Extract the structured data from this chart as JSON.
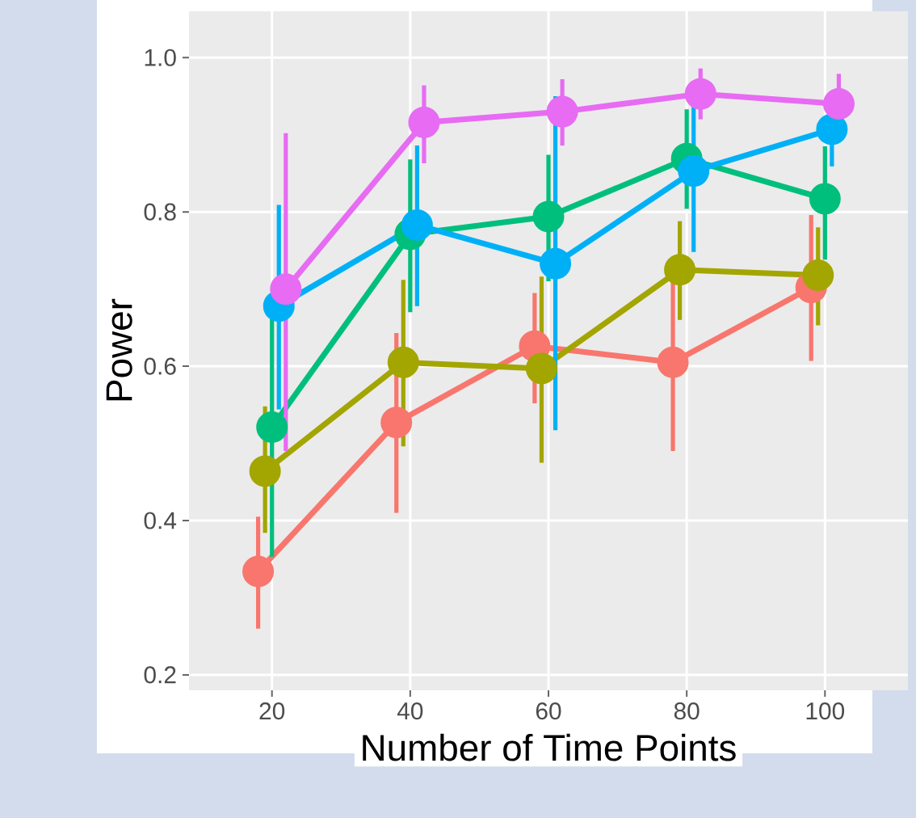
{
  "chart_data": {
    "type": "line",
    "xlabel": "Number of Time Points",
    "ylabel": "Power",
    "xlim": [
      8,
      112
    ],
    "ylim": [
      0.18,
      1.06
    ],
    "xticks": [
      20,
      40,
      60,
      80,
      100
    ],
    "yticks": [
      {
        "value": 0.2,
        "label": "0.2"
      },
      {
        "value": 0.4,
        "label": "0.4"
      },
      {
        "value": 0.6,
        "label": "0.6"
      },
      {
        "value": 0.8,
        "label": "0.8"
      },
      {
        "value": 1.0,
        "label": "1.0"
      }
    ],
    "grid": true,
    "marker": "circle",
    "line_style": "solid",
    "series": [
      {
        "color": "#f8766d",
        "x": [
          18,
          38,
          58,
          78,
          98
        ],
        "values": [
          0.334,
          0.527,
          0.626,
          0.605,
          0.702
        ],
        "errors": [
          [
            0.26,
            0.405
          ],
          [
            0.41,
            0.643
          ],
          [
            0.552,
            0.695
          ],
          [
            0.49,
            0.716
          ],
          [
            0.607,
            0.796
          ]
        ]
      },
      {
        "color": "#a3a500",
        "x": [
          19,
          39,
          59,
          79,
          99
        ],
        "values": [
          0.464,
          0.605,
          0.597,
          0.725,
          0.718
        ],
        "errors": [
          [
            0.384,
            0.548
          ],
          [
            0.496,
            0.712
          ],
          [
            0.475,
            0.716
          ],
          [
            0.66,
            0.788
          ],
          [
            0.653,
            0.78
          ]
        ]
      },
      {
        "color": "#00bf7d",
        "x": [
          20,
          40,
          60,
          80,
          100
        ],
        "values": [
          0.521,
          0.771,
          0.794,
          0.869,
          0.817
        ],
        "errors": [
          [
            0.353,
            0.689
          ],
          [
            0.67,
            0.868
          ],
          [
            0.71,
            0.874
          ],
          [
            0.804,
            0.933
          ],
          [
            0.738,
            0.885
          ]
        ]
      },
      {
        "color": "#00b0f6",
        "x": [
          21,
          41,
          61,
          81,
          101
        ],
        "values": [
          0.678,
          0.783,
          0.733,
          0.853,
          0.907
        ],
        "errors": [
          [
            0.544,
            0.809
          ],
          [
            0.678,
            0.886
          ],
          [
            0.517,
            0.95
          ],
          [
            0.748,
            0.937
          ],
          [
            0.859,
            0.95
          ]
        ]
      },
      {
        "color": "#e76bf3",
        "x": [
          22,
          42,
          62,
          82,
          102
        ],
        "values": [
          0.7,
          0.916,
          0.93,
          0.953,
          0.94
        ],
        "errors": [
          [
            0.49,
            0.902
          ],
          [
            0.863,
            0.964
          ],
          [
            0.886,
            0.972
          ],
          [
            0.92,
            0.986
          ],
          [
            0.9,
            0.979
          ]
        ]
      }
    ]
  }
}
